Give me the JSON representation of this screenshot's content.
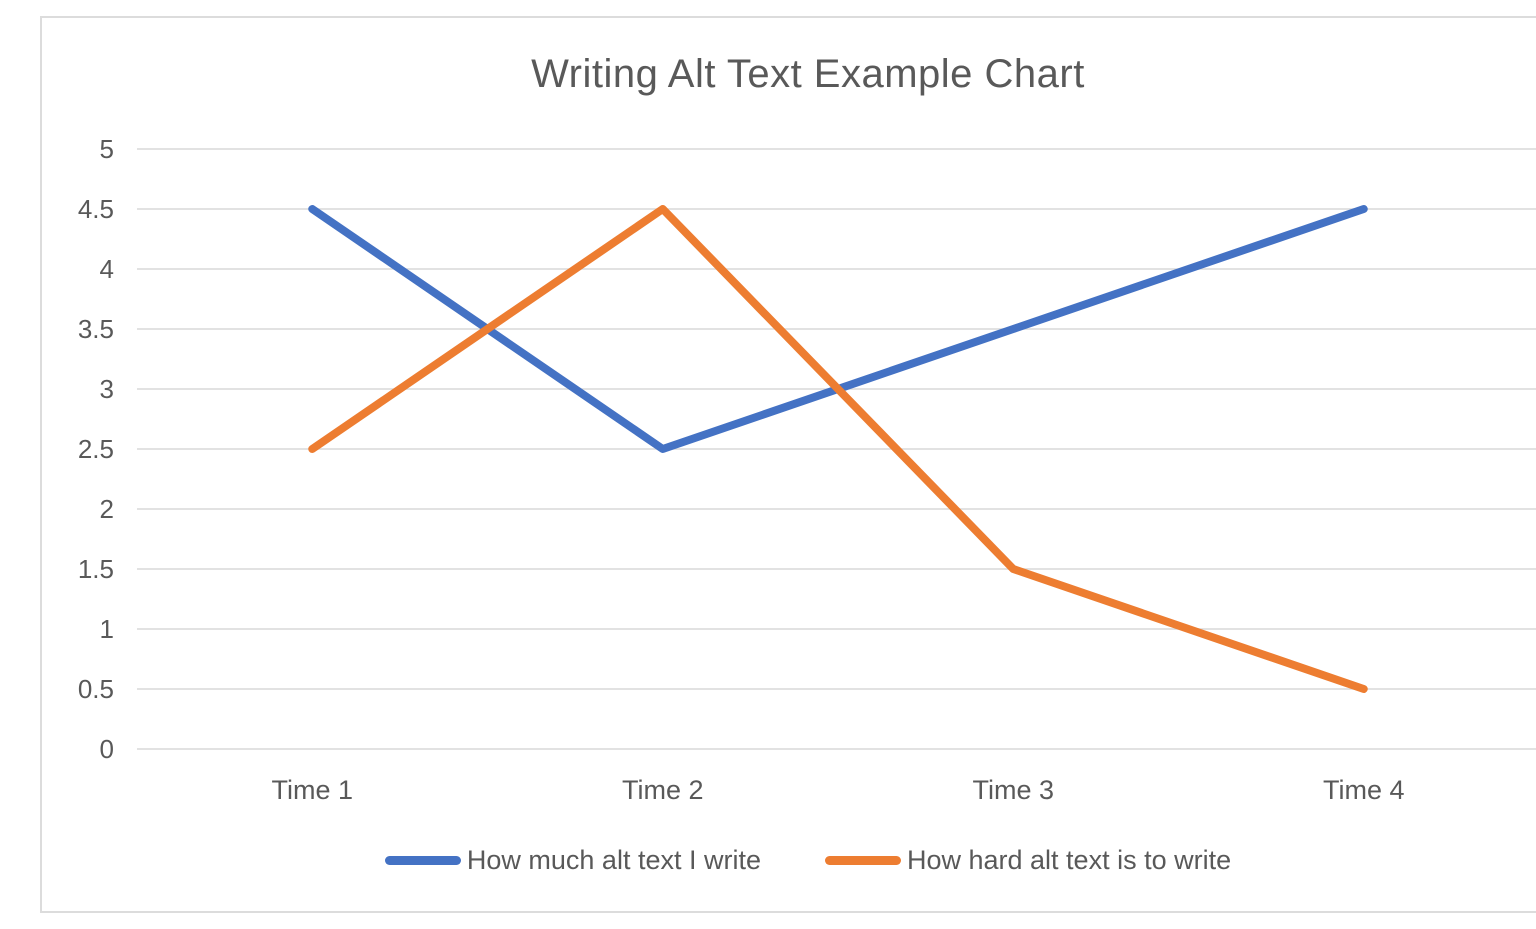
{
  "chart_data": {
    "type": "line",
    "title": "Writing Alt Text Example Chart",
    "categories": [
      "Time 1",
      "Time 2",
      "Time 3",
      "Time 4"
    ],
    "series": [
      {
        "name": "How much alt text I write",
        "color": "#4472C4",
        "values": [
          4.5,
          2.5,
          3.5,
          4.5
        ]
      },
      {
        "name": "How hard alt text is to write",
        "color": "#ED7D31",
        "values": [
          2.5,
          4.5,
          1.5,
          0.5
        ]
      }
    ],
    "xlabel": "",
    "ylabel": "",
    "ylim": [
      0,
      5
    ],
    "y_ticks": [
      0,
      0.5,
      1,
      1.5,
      2,
      2.5,
      3,
      3.5,
      4,
      4.5,
      5
    ],
    "grid": true,
    "legend_position": "bottom",
    "colors": {
      "grid": "#D9D9D9",
      "text": "#595959",
      "background": "#FFFFFF",
      "canvas_border": "#DCDCDC"
    }
  }
}
